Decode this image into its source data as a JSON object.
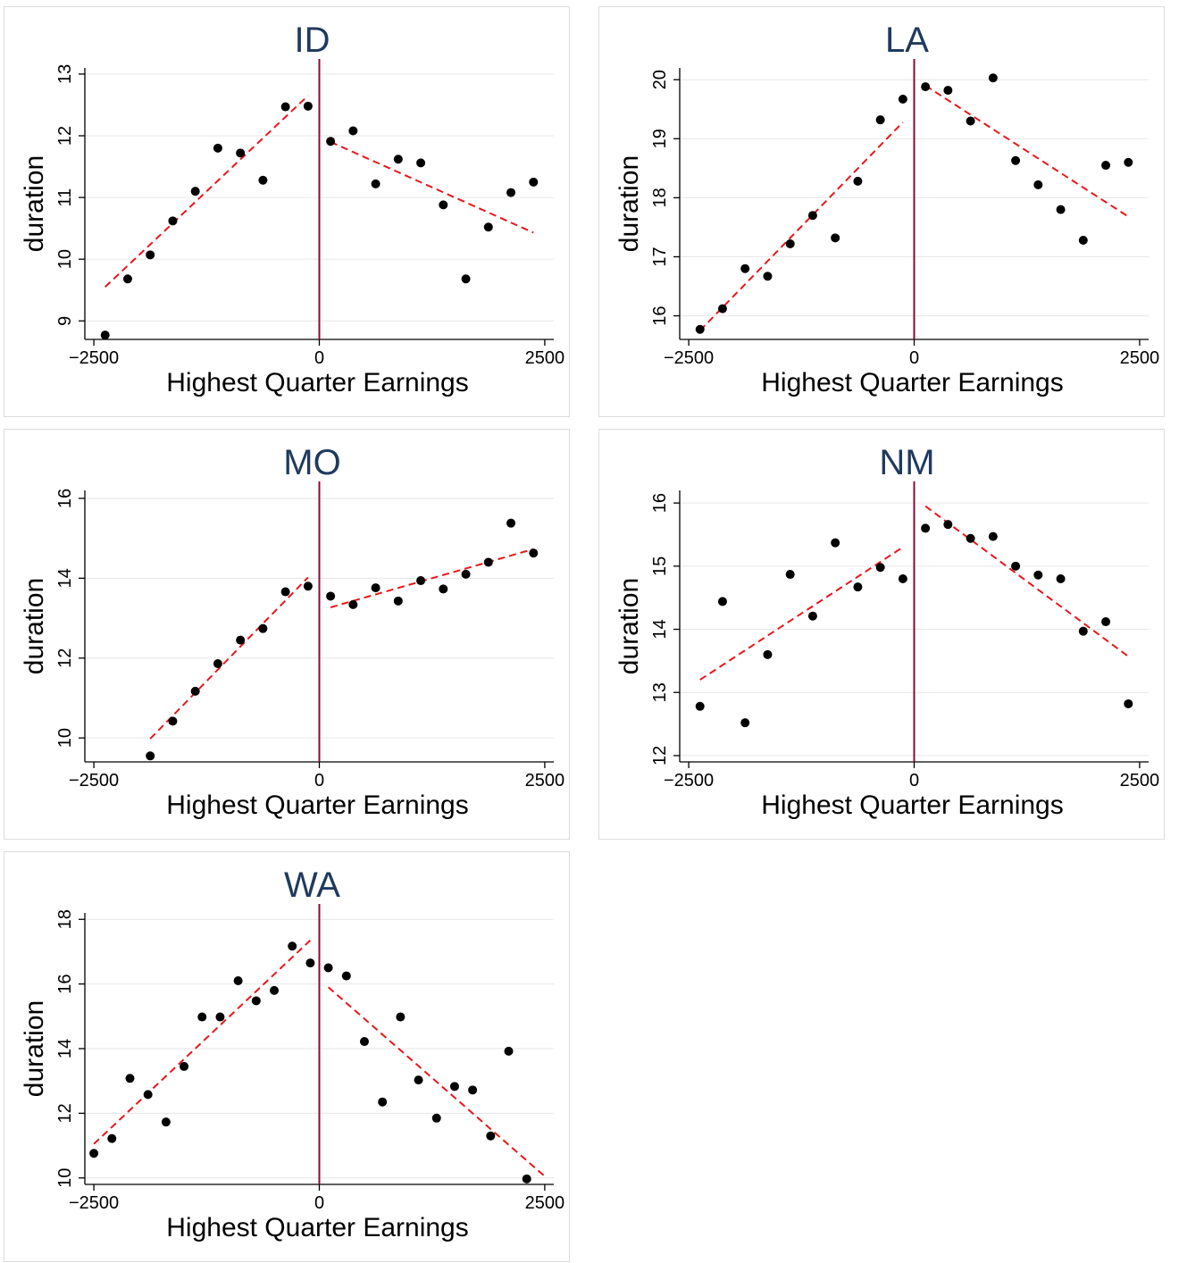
{
  "chart_data": [
    {
      "type": "scatter",
      "title": "ID",
      "xlabel": "Highest Quarter Earnings",
      "ylabel": "duration",
      "xlim": [
        -2600,
        2600
      ],
      "ylim": [
        8.7,
        13.1
      ],
      "xticks": [
        "-2500",
        "0",
        "2500"
      ],
      "yticks": [
        "9",
        "10",
        "11",
        "12",
        "13"
      ],
      "cutoff": 0,
      "points": [
        [
          -2375,
          8.77
        ],
        [
          -2125,
          9.68
        ],
        [
          -1875,
          10.07
        ],
        [
          -1625,
          10.62
        ],
        [
          -1375,
          11.1
        ],
        [
          -1125,
          11.8
        ],
        [
          -875,
          11.72
        ],
        [
          -625,
          11.28
        ],
        [
          -375,
          12.47
        ],
        [
          -125,
          12.48
        ],
        [
          125,
          11.91
        ],
        [
          375,
          12.08
        ],
        [
          625,
          11.22
        ],
        [
          875,
          11.62
        ],
        [
          1125,
          11.56
        ],
        [
          1375,
          10.88
        ],
        [
          1625,
          9.68
        ],
        [
          1875,
          10.52
        ],
        [
          2125,
          11.08
        ],
        [
          2375,
          11.25
        ]
      ],
      "fit_left": [
        [
          -2375,
          9.55
        ],
        [
          -125,
          12.65
        ]
      ],
      "fit_right": [
        [
          125,
          11.9
        ],
        [
          2375,
          10.43
        ]
      ],
      "grid": true
    },
    {
      "type": "scatter",
      "title": "LA",
      "xlabel": "Highest Quarter Earnings",
      "ylabel": "duration",
      "xlim": [
        -2600,
        2600
      ],
      "ylim": [
        15.6,
        20.2
      ],
      "xticks": [
        "-2500",
        "0",
        "2500"
      ],
      "yticks": [
        "16",
        "17",
        "18",
        "19",
        "20"
      ],
      "cutoff": 0,
      "points": [
        [
          -2375,
          15.77
        ],
        [
          -2125,
          16.12
        ],
        [
          -1875,
          16.8
        ],
        [
          -1625,
          16.67
        ],
        [
          -1375,
          17.22
        ],
        [
          -1125,
          17.7
        ],
        [
          -875,
          17.32
        ],
        [
          -625,
          18.28
        ],
        [
          -375,
          19.32
        ],
        [
          -125,
          19.67
        ],
        [
          125,
          19.88
        ],
        [
          375,
          19.82
        ],
        [
          625,
          19.3
        ],
        [
          875,
          20.03
        ],
        [
          1125,
          18.63
        ],
        [
          1375,
          18.22
        ],
        [
          1625,
          17.8
        ],
        [
          1875,
          17.28
        ],
        [
          2125,
          18.55
        ],
        [
          2375,
          18.6
        ]
      ],
      "fit_left": [
        [
          -2375,
          15.75
        ],
        [
          -125,
          19.28
        ]
      ],
      "fit_right": [
        [
          125,
          19.9
        ],
        [
          2375,
          17.68
        ]
      ],
      "grid": true
    },
    {
      "type": "scatter",
      "title": "MO",
      "xlabel": "Highest Quarter Earnings",
      "ylabel": "duration",
      "xlim": [
        -2600,
        2600
      ],
      "ylim": [
        9.4,
        16.2
      ],
      "xticks": [
        "-2500",
        "0",
        "2500"
      ],
      "yticks": [
        "10",
        "12",
        "14",
        "16"
      ],
      "cutoff": 0,
      "points": [
        [
          -1875,
          9.55
        ],
        [
          -1625,
          10.42
        ],
        [
          -1375,
          11.17
        ],
        [
          -1125,
          11.86
        ],
        [
          -875,
          12.45
        ],
        [
          -625,
          12.74
        ],
        [
          -375,
          13.66
        ],
        [
          -125,
          13.8
        ],
        [
          125,
          13.55
        ],
        [
          375,
          13.34
        ],
        [
          625,
          13.76
        ],
        [
          875,
          13.43
        ],
        [
          1125,
          13.94
        ],
        [
          1375,
          13.73
        ],
        [
          1625,
          14.1
        ],
        [
          1875,
          14.4
        ],
        [
          2125,
          15.38
        ],
        [
          2375,
          14.63
        ]
      ],
      "fit_left": [
        [
          -1875,
          9.98
        ],
        [
          -125,
          14.02
        ]
      ],
      "fit_right": [
        [
          125,
          13.27
        ],
        [
          2375,
          14.73
        ]
      ],
      "grid": true
    },
    {
      "type": "scatter",
      "title": "NM",
      "xlabel": "Highest Quarter Earnings",
      "ylabel": "duration",
      "xlim": [
        -2600,
        2600
      ],
      "ylim": [
        11.9,
        16.2
      ],
      "xticks": [
        "-2500",
        "0",
        "2500"
      ],
      "yticks": [
        "12",
        "13",
        "14",
        "15",
        "16"
      ],
      "cutoff": 0,
      "points": [
        [
          -2375,
          12.78
        ],
        [
          -2125,
          14.44
        ],
        [
          -1875,
          12.52
        ],
        [
          -1625,
          13.6
        ],
        [
          -1375,
          14.87
        ],
        [
          -1125,
          14.21
        ],
        [
          -875,
          15.37
        ],
        [
          -625,
          14.67
        ],
        [
          -375,
          14.98
        ],
        [
          -125,
          14.8
        ],
        [
          125,
          15.6
        ],
        [
          375,
          15.66
        ],
        [
          625,
          15.44
        ],
        [
          875,
          15.47
        ],
        [
          1125,
          15.0
        ],
        [
          1375,
          14.86
        ],
        [
          1625,
          14.8
        ],
        [
          1875,
          13.97
        ],
        [
          2125,
          14.12
        ],
        [
          2375,
          12.82
        ]
      ],
      "fit_left": [
        [
          -2375,
          13.2
        ],
        [
          -125,
          15.3
        ]
      ],
      "fit_right": [
        [
          125,
          15.95
        ],
        [
          2375,
          13.57
        ]
      ],
      "grid": true
    },
    {
      "type": "scatter",
      "title": "WA",
      "xlabel": "Highest Quarter Earnings",
      "ylabel": "duration",
      "xlim": [
        -2600,
        2600
      ],
      "ylim": [
        9.8,
        18.2
      ],
      "xticks": [
        "-2500",
        "0",
        "2500"
      ],
      "yticks": [
        "10",
        "12",
        "14",
        "16",
        "18"
      ],
      "cutoff": 0,
      "points": [
        [
          -2500,
          10.76
        ],
        [
          -2300,
          11.22
        ],
        [
          -2100,
          13.08
        ],
        [
          -1900,
          12.58
        ],
        [
          -1700,
          11.73
        ],
        [
          -1500,
          13.45
        ],
        [
          -1300,
          14.98
        ],
        [
          -1100,
          14.98
        ],
        [
          -900,
          16.1
        ],
        [
          -700,
          15.48
        ],
        [
          -500,
          15.8
        ],
        [
          -300,
          17.17
        ],
        [
          -100,
          16.65
        ],
        [
          100,
          16.5
        ],
        [
          300,
          16.25
        ],
        [
          500,
          14.22
        ],
        [
          700,
          12.35
        ],
        [
          900,
          14.98
        ],
        [
          1100,
          13.03
        ],
        [
          1300,
          11.85
        ],
        [
          1500,
          12.83
        ],
        [
          1700,
          12.72
        ],
        [
          1900,
          11.3
        ],
        [
          2100,
          13.92
        ],
        [
          2300,
          9.97
        ]
      ],
      "fit_left": [
        [
          -2500,
          11.05
        ],
        [
          -100,
          17.35
        ]
      ],
      "fit_right": [
        [
          100,
          15.9
        ],
        [
          2500,
          10.05
        ]
      ],
      "grid": true
    }
  ]
}
